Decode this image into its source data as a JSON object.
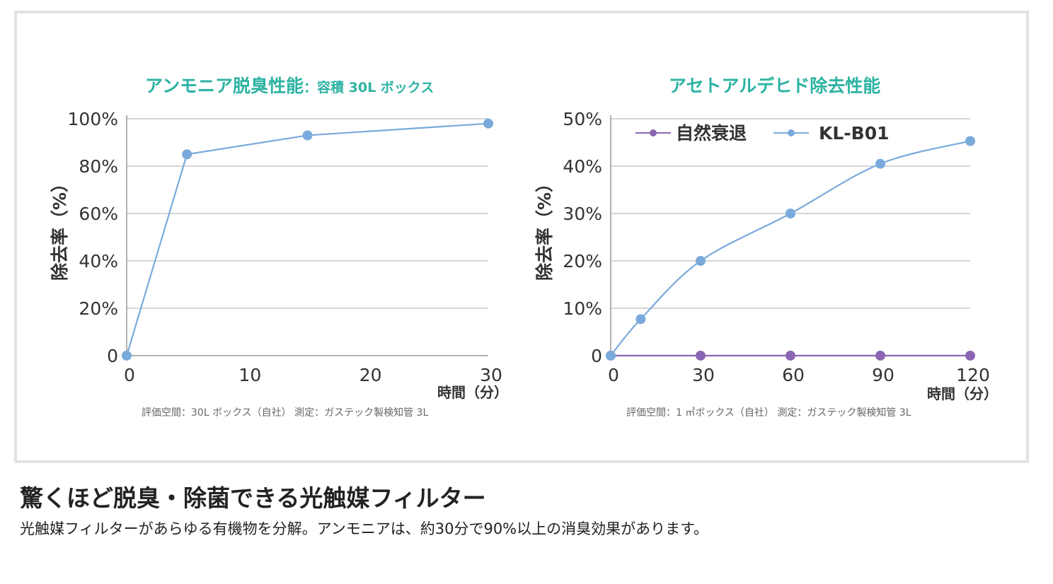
{
  "heading": "驚くほど脱臭・除菌できる光触媒フィルター",
  "description": "光触媒フィルターがあらゆる有機物を分解。アンモニアは、約30分で90%以上の消臭効果があります。",
  "colors": {
    "title": "#2db3a3",
    "kl_b01": "#7aaadb",
    "natural": "#8c66b3",
    "grid": "#c8c8c8"
  },
  "chart_data": [
    {
      "type": "line",
      "title": "アンモニア脱臭性能",
      "subtitle": "：容積 30L ボックス",
      "ylabel": "除去率（%）",
      "xlabel": "時間（分）",
      "ylim": [
        0,
        100
      ],
      "xlim": [
        0,
        30
      ],
      "y_ticks": [
        "0",
        "20%",
        "40%",
        "60%",
        "80%",
        "100%"
      ],
      "x_ticks": [
        "0",
        "10",
        "20",
        "30"
      ],
      "grid": true,
      "note": "評価空間：30L ボックス（自社） 測定：ガステック製検知管 3L",
      "series": [
        {
          "name": "",
          "color": "#7aaadb",
          "x": [
            0,
            5,
            15,
            30
          ],
          "y": [
            0,
            85,
            93,
            98
          ]
        }
      ]
    },
    {
      "type": "line",
      "title": "アセトアルデヒド除去性能",
      "ylabel": "除去率（%）",
      "xlabel": "時間（分）",
      "ylim": [
        0,
        50
      ],
      "xlim": [
        0,
        120
      ],
      "y_ticks": [
        "0",
        "10%",
        "20%",
        "30%",
        "40%",
        "50%"
      ],
      "x_ticks": [
        "0",
        "30",
        "60",
        "90",
        "120"
      ],
      "grid": true,
      "legend_position": "top-left",
      "note": "評価空間：1 ㎥ボックス（自社） 測定：ガステック製検知管 3L",
      "series": [
        {
          "name": "自然衰退",
          "color": "#8c66b3",
          "x": [
            0,
            30,
            60,
            90,
            120
          ],
          "y": [
            0,
            0,
            0,
            0,
            0
          ]
        },
        {
          "name": "KL-B01",
          "color": "#7aaadb",
          "x": [
            0,
            10,
            30,
            60,
            90,
            120
          ],
          "y": [
            0,
            7.7,
            20,
            30,
            40.5,
            45.3
          ]
        }
      ]
    }
  ]
}
